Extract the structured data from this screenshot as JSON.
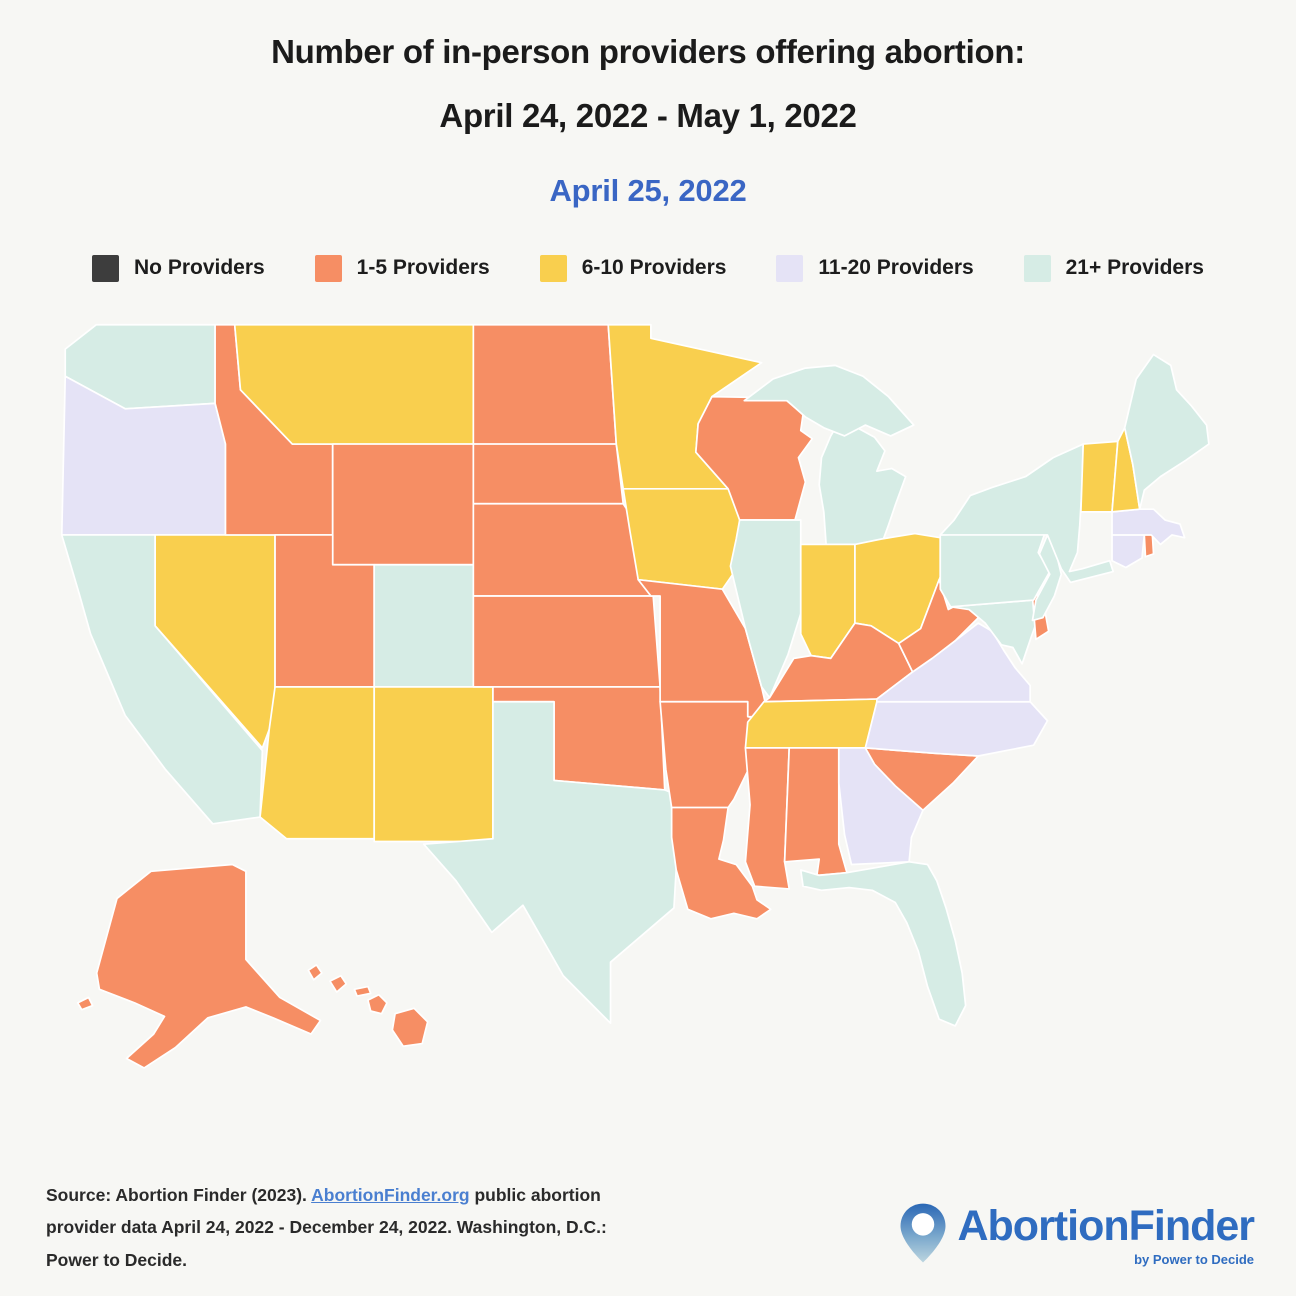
{
  "title": {
    "line1": "Number of in-person providers offering abortion:",
    "line2": "April 24, 2022 - May 1, 2022"
  },
  "subtitle": "April 25, 2022",
  "legend": {
    "items": [
      {
        "key": "0",
        "label": "No Providers",
        "color": "#3d3d3d"
      },
      {
        "key": "1-5",
        "label": "1-5 Providers",
        "color": "#f68e64"
      },
      {
        "key": "6-10",
        "label": "6-10 Providers",
        "color": "#f9cf4e"
      },
      {
        "key": "11-20",
        "label": "11-20 Providers",
        "color": "#e5e3f6"
      },
      {
        "key": "21+",
        "label": "21+ Providers",
        "color": "#d6ece5"
      }
    ]
  },
  "chart_data": {
    "type": "choropleth",
    "region": "United States",
    "title": "Number of in-person providers offering abortion: April 24, 2022 - May 1, 2022",
    "date_shown": "April 25, 2022",
    "legend_position": "top",
    "categories": [
      "No Providers",
      "1-5 Providers",
      "6-10 Providers",
      "11-20 Providers",
      "21+ Providers"
    ],
    "states": [
      {
        "id": "WA",
        "name": "Washington",
        "category": "21+"
      },
      {
        "id": "OR",
        "name": "Oregon",
        "category": "11-20"
      },
      {
        "id": "CA",
        "name": "California",
        "category": "21+"
      },
      {
        "id": "NV",
        "name": "Nevada",
        "category": "6-10"
      },
      {
        "id": "ID",
        "name": "Idaho",
        "category": "1-5"
      },
      {
        "id": "MT",
        "name": "Montana",
        "category": "6-10"
      },
      {
        "id": "WY",
        "name": "Wyoming",
        "category": "1-5"
      },
      {
        "id": "UT",
        "name": "Utah",
        "category": "1-5"
      },
      {
        "id": "CO",
        "name": "Colorado",
        "category": "21+"
      },
      {
        "id": "AZ",
        "name": "Arizona",
        "category": "6-10"
      },
      {
        "id": "NM",
        "name": "New Mexico",
        "category": "6-10"
      },
      {
        "id": "ND",
        "name": "North Dakota",
        "category": "1-5"
      },
      {
        "id": "SD",
        "name": "South Dakota",
        "category": "1-5"
      },
      {
        "id": "NE",
        "name": "Nebraska",
        "category": "1-5"
      },
      {
        "id": "KS",
        "name": "Kansas",
        "category": "1-5"
      },
      {
        "id": "OK",
        "name": "Oklahoma",
        "category": "1-5"
      },
      {
        "id": "TX",
        "name": "Texas",
        "category": "21+"
      },
      {
        "id": "MN",
        "name": "Minnesota",
        "category": "6-10"
      },
      {
        "id": "IA",
        "name": "Iowa",
        "category": "6-10"
      },
      {
        "id": "MO",
        "name": "Missouri",
        "category": "1-5"
      },
      {
        "id": "AR",
        "name": "Arkansas",
        "category": "1-5"
      },
      {
        "id": "LA",
        "name": "Louisiana",
        "category": "1-5"
      },
      {
        "id": "WI",
        "name": "Wisconsin",
        "category": "1-5"
      },
      {
        "id": "IL",
        "name": "Illinois",
        "category": "21+"
      },
      {
        "id": "MI",
        "name": "Michigan",
        "category": "21+"
      },
      {
        "id": "IN",
        "name": "Indiana",
        "category": "6-10"
      },
      {
        "id": "OH",
        "name": "Ohio",
        "category": "6-10"
      },
      {
        "id": "KY",
        "name": "Kentucky",
        "category": "1-5"
      },
      {
        "id": "TN",
        "name": "Tennessee",
        "category": "6-10"
      },
      {
        "id": "MS",
        "name": "Mississippi",
        "category": "1-5"
      },
      {
        "id": "AL",
        "name": "Alabama",
        "category": "1-5"
      },
      {
        "id": "GA",
        "name": "Georgia",
        "category": "11-20"
      },
      {
        "id": "FL",
        "name": "Florida",
        "category": "21+"
      },
      {
        "id": "SC",
        "name": "South Carolina",
        "category": "1-5"
      },
      {
        "id": "NC",
        "name": "North Carolina",
        "category": "11-20"
      },
      {
        "id": "VA",
        "name": "Virginia",
        "category": "11-20"
      },
      {
        "id": "WV",
        "name": "West Virginia",
        "category": "1-5"
      },
      {
        "id": "MD",
        "name": "Maryland",
        "category": "21+"
      },
      {
        "id": "DE",
        "name": "Delaware",
        "category": "1-5"
      },
      {
        "id": "PA",
        "name": "Pennsylvania",
        "category": "21+"
      },
      {
        "id": "NJ",
        "name": "New Jersey",
        "category": "21+"
      },
      {
        "id": "NY",
        "name": "New York",
        "category": "21+"
      },
      {
        "id": "CT",
        "name": "Connecticut",
        "category": "11-20"
      },
      {
        "id": "RI",
        "name": "Rhode Island",
        "category": "1-5"
      },
      {
        "id": "MA",
        "name": "Massachusetts",
        "category": "11-20"
      },
      {
        "id": "VT",
        "name": "Vermont",
        "category": "6-10"
      },
      {
        "id": "NH",
        "name": "New Hampshire",
        "category": "6-10"
      },
      {
        "id": "ME",
        "name": "Maine",
        "category": "21+"
      },
      {
        "id": "AK",
        "name": "Alaska",
        "category": "1-5"
      },
      {
        "id": "HI",
        "name": "Hawaii",
        "category": "1-5"
      }
    ]
  },
  "footer": {
    "source_prefix": "Source: Abortion Finder (2023). ",
    "source_link": "AbortionFinder.org",
    "source_suffix": " public abortion provider data April 24, 2022 - December 24, 2022. Washington, D.C.: Power to Decide.",
    "logo_text": "AbortionFinder",
    "logo_tagline": "by Power to Decide"
  },
  "colors": {
    "background": "#f7f7f4",
    "title": "#1b1b1b",
    "subtitle": "#3a66c4",
    "link": "#4a7fd0",
    "logo": "#2f6cc0"
  }
}
